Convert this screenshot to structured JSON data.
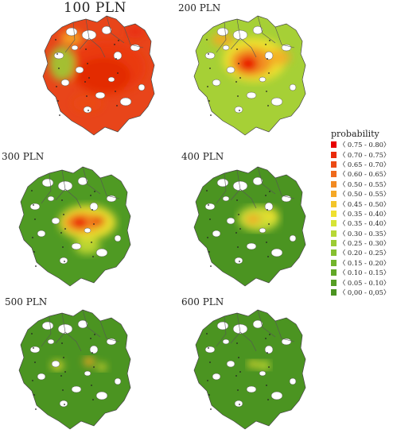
{
  "panels": [
    {
      "title": "100 PLN",
      "level": 0
    },
    {
      "title": "200 PLN",
      "level": 1
    },
    {
      "title": "300 PLN",
      "level": 2
    },
    {
      "title": "400 PLN",
      "level": 3
    },
    {
      "title": "500 PLN",
      "level": 4
    },
    {
      "title": "600 PLN",
      "level": 5
    }
  ],
  "legend": {
    "title": "probability",
    "items": [
      {
        "label": "〈 0.75 - 0.80〉",
        "color": "#e80000"
      },
      {
        "label": "〈 0.70 - 0.75〉",
        "color": "#ea2a0a"
      },
      {
        "label": "〈 0.65 - 0.70〉",
        "color": "#ec4a14"
      },
      {
        "label": "〈 0.60 - 0.65〉",
        "color": "#ef6a1c"
      },
      {
        "label": "〈 0.50 - 0.55〉",
        "color": "#f28a22"
      },
      {
        "label": "〈 0.50 - 0.55〉",
        "color": "#f5a826"
      },
      {
        "label": "〈 0.45 - 0.50〉",
        "color": "#f3c52a"
      },
      {
        "label": "〈 0.35 - 0.40〉",
        "color": "#efe030"
      },
      {
        "label": "〈 0.35 - 0.40〉",
        "color": "#d6e436"
      },
      {
        "label": "〈 0.30 - 0.35〉",
        "color": "#b8d836"
      },
      {
        "label": "〈 0.25 - 0.30〉",
        "color": "#9ccc34"
      },
      {
        "label": "〈 0.20 - 0.25〉",
        "color": "#86c030"
      },
      {
        "label": "〈 0.15 - 0.20〉",
        "color": "#72b42c"
      },
      {
        "label": "〈 0.10 - 0.15〉",
        "color": "#62a828"
      },
      {
        "label": "〈 0.05 - 0.10〉",
        "color": "#569e24"
      },
      {
        "label": "〈 0,00 - 0,05〉",
        "color": "#4b9421"
      }
    ]
  }
}
